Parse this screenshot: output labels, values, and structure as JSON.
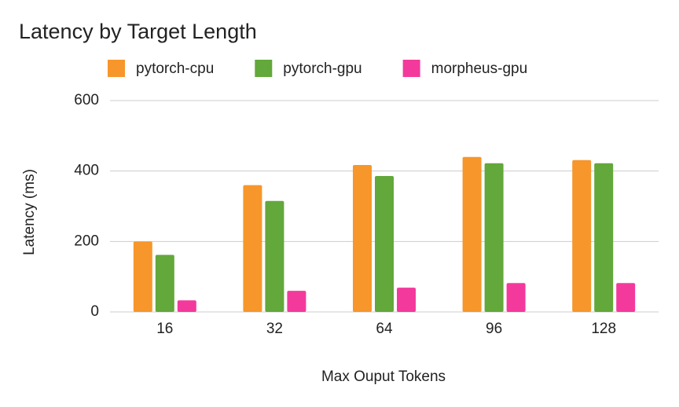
{
  "chart_data": {
    "type": "bar",
    "title": "Latency by Target Length",
    "x_label": "Max Ouput Tokens",
    "y_label": "Latency (ms)",
    "categories": [
      "16",
      "32",
      "64",
      "96",
      "128"
    ],
    "series": [
      {
        "name": "pytorch-cpu",
        "color": "#f7962b",
        "values": [
          200,
          360,
          417,
          440,
          431
        ]
      },
      {
        "name": "pytorch-gpu",
        "color": "#62a83a",
        "values": [
          162,
          315,
          386,
          422,
          422
        ]
      },
      {
        "name": "morpheus-gpu",
        "color": "#f33a9c",
        "values": [
          33,
          60,
          69,
          82,
          82
        ]
      }
    ],
    "ylim": [
      0,
      600
    ],
    "yticks": [
      0,
      200,
      400,
      600
    ],
    "grid": true,
    "legend": "top"
  }
}
